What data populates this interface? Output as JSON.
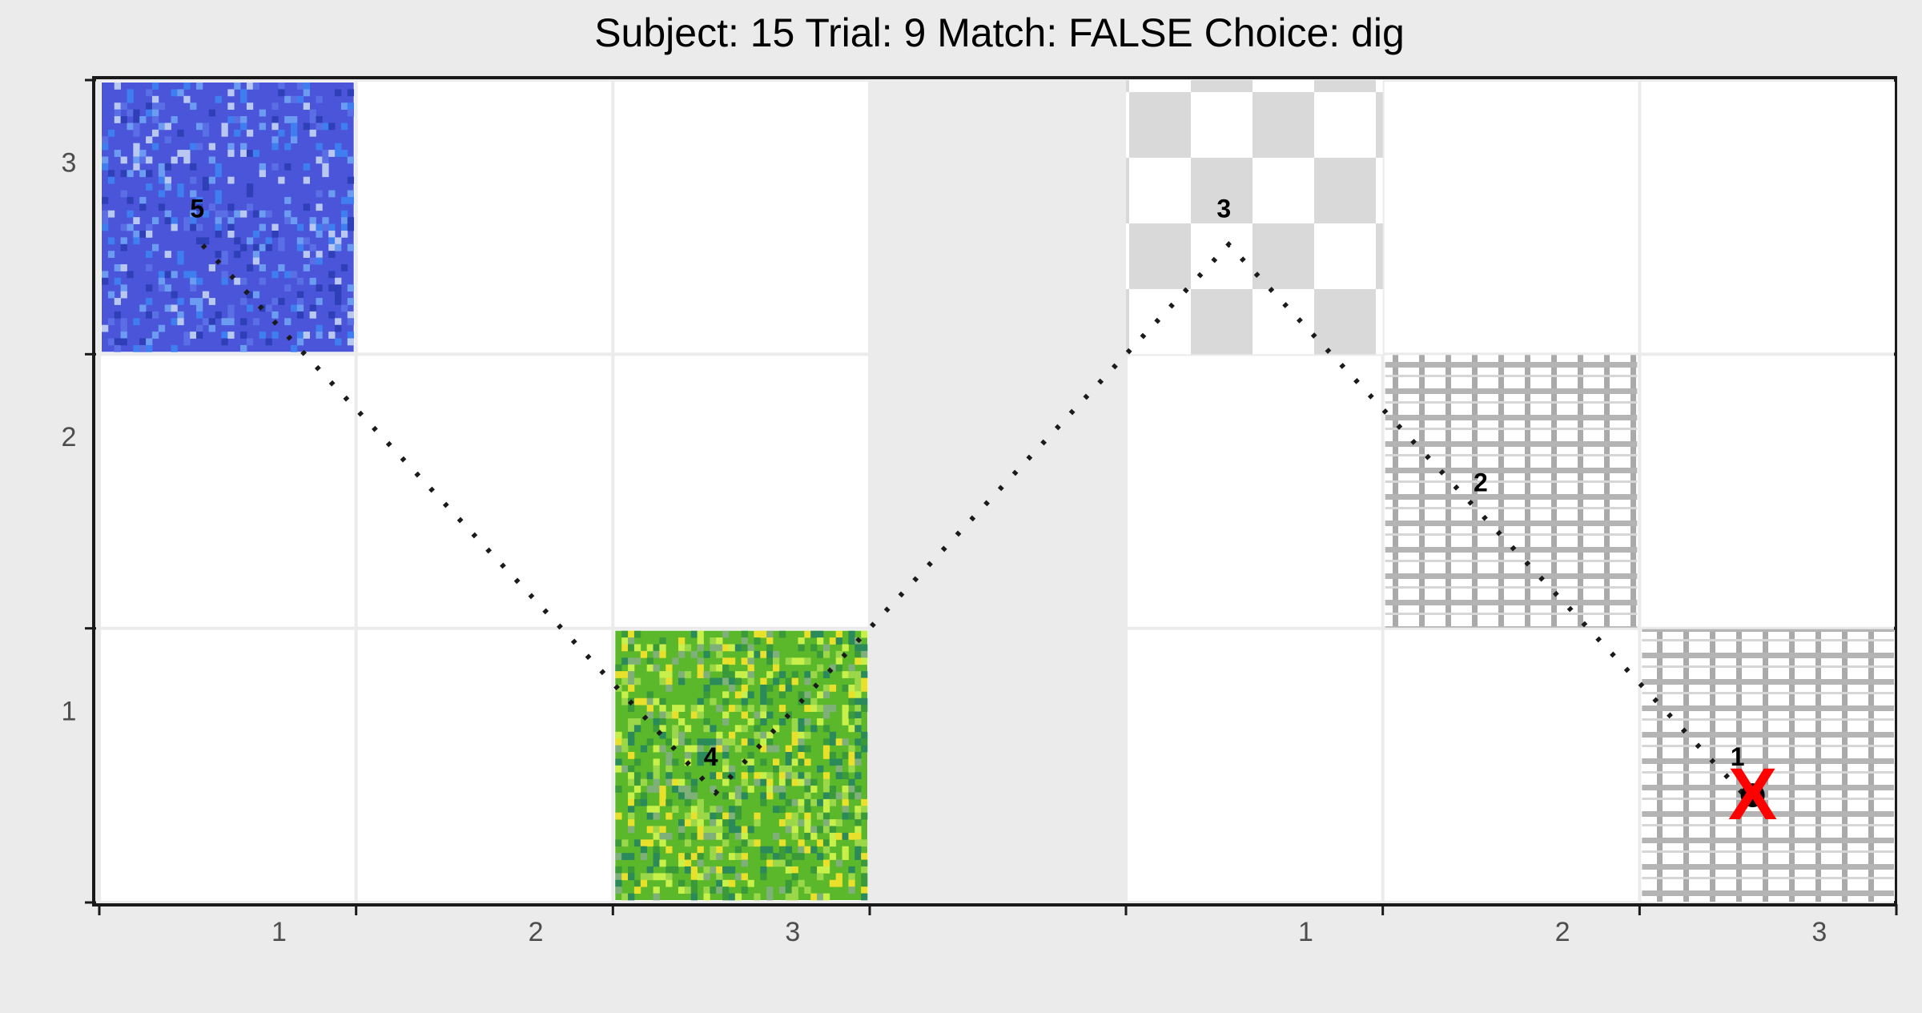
{
  "chart_data": {
    "type": "scatter",
    "title": "Subject:  15  Trial:  9  Match: FALSE  Choice: dig",
    "xlabel": "",
    "ylabel": "",
    "panels": [
      {
        "name": "left",
        "xlim": [
          0.3,
          3.3
        ],
        "ylim": [
          0.3,
          3.3
        ],
        "x_ticks": [
          1,
          2,
          3
        ],
        "y_ticks": [
          1,
          2,
          3
        ],
        "tiles": [
          {
            "col": 1,
            "row": 3,
            "texture": "blue-noise"
          },
          {
            "col": 3,
            "row": 1,
            "texture": "green-noise"
          }
        ]
      },
      {
        "name": "right",
        "xlim": [
          0.3,
          3.3
        ],
        "ylim": [
          0.3,
          3.3
        ],
        "x_ticks": [
          1,
          2,
          3
        ],
        "y_ticks": [],
        "tiles": [
          {
            "col": 1,
            "row": 3,
            "texture": "checkerboard"
          },
          {
            "col": 2,
            "row": 2,
            "texture": "grid"
          },
          {
            "col": 3,
            "row": 1,
            "texture": "grid"
          }
        ]
      }
    ],
    "path": [
      {
        "panel": 1,
        "x": 2.7,
        "y": 0.7,
        "label": "1"
      },
      {
        "panel": 1,
        "x": 1.7,
        "y": 1.7,
        "label": "2"
      },
      {
        "panel": 1,
        "x": 0.7,
        "y": 2.7,
        "label": "3"
      },
      {
        "panel": 0,
        "x": 2.7,
        "y": 0.7,
        "label": "4"
      },
      {
        "panel": 0,
        "x": 0.7,
        "y": 2.7,
        "label": "5"
      }
    ],
    "final_choice": {
      "panel": 1,
      "x": 2.7,
      "y": 0.7,
      "marker": "X",
      "color": "#ff0000"
    },
    "colors": {
      "background": "#ebebeb",
      "cell": "#ffffff",
      "grid_line": "#e5e5e5",
      "path": "#1a1a1a",
      "axis": "#1a1a1a",
      "tick_label": "#4d4d4d",
      "choice_marker": "#ff0000"
    }
  }
}
